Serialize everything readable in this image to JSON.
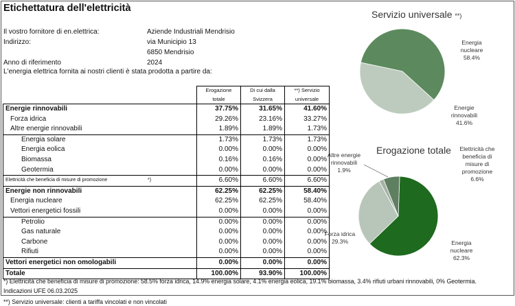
{
  "title": "Etichettatura dell'elettricità",
  "info": {
    "supplier_label": "Il vostro fornitore di en.elettrica:",
    "supplier_value": "Aziende Industriali Mendrisio",
    "address_label": "Indirizzo:",
    "address_line1": "via Municipio 13",
    "address_line2": "6850 Mendrisio",
    "year_label": "Anno di riferimento",
    "year_value": "2024",
    "intro": "L'energia elettrica fornita ai nostri clienti è stata prodotta a partire da:"
  },
  "table": {
    "headers": [
      [
        "Erogazione",
        "totale"
      ],
      [
        "Di cui dalla",
        "Svizzera"
      ],
      [
        "**) Servizio",
        "universale"
      ]
    ],
    "rows": [
      {
        "label": "Energie rinnovabili",
        "v": [
          "37.75%",
          "31.65%",
          "41.60%"
        ]
      },
      {
        "label": "Forza idrica",
        "v": [
          "29.26%",
          "23.16%",
          "33.27%"
        ]
      },
      {
        "label": "Altre energie rinnovabili",
        "v": [
          "1.89%",
          "1.89%",
          "1.73%"
        ]
      },
      {
        "label": "Energia solare",
        "v": [
          "1.73%",
          "1.73%",
          "1.73%"
        ]
      },
      {
        "label": "Energia eolica",
        "v": [
          "0.00%",
          "0.00%",
          "0.00%"
        ]
      },
      {
        "label": "Biomassa",
        "v": [
          "0.16%",
          "0.16%",
          "0.00%"
        ]
      },
      {
        "label": "Geotermia",
        "v": [
          "0.00%",
          "0.00%",
          "0.00%"
        ]
      },
      {
        "label": "Elettricità che beneficia di misure di promozione",
        "note": "*)",
        "v": [
          "6.60%",
          "6.60%",
          "6.60%"
        ]
      },
      {
        "label": "Energie non rinnovabili",
        "v": [
          "62.25%",
          "62.25%",
          "58.40%"
        ]
      },
      {
        "label": "Energia nucleare",
        "v": [
          "62.25%",
          "62.25%",
          "58.40%"
        ]
      },
      {
        "label": "Vettori energetici fossili",
        "v": [
          "0.00%",
          "0.00%",
          "0.00%"
        ]
      },
      {
        "label": "Petrolio",
        "v": [
          "0.00%",
          "0.00%",
          "0.00%"
        ]
      },
      {
        "label": "Gas naturale",
        "v": [
          "0.00%",
          "0.00%",
          "0.00%"
        ]
      },
      {
        "label": "Carbone",
        "v": [
          "0.00%",
          "0.00%",
          "0.00%"
        ]
      },
      {
        "label": "Rifiuti",
        "v": [
          "0.00%",
          "0.00%",
          "0.00%"
        ]
      },
      {
        "label": "Vettori energetici non omologabili",
        "v": [
          "0.00%",
          "0.00%",
          "0.00%"
        ]
      },
      {
        "label": "Totale",
        "v": [
          "100.00%",
          "93.90%",
          "100.00%"
        ]
      }
    ]
  },
  "footnotes": {
    "promo": "*) Elettricità che beneficia di misure di promozione: 58.5% forza idrica, 14.9% energia solare,  4.1% energia eolica, 19.1% biomassa, 3.4% rifiuti urbani rinnovabili, 0% Geotermia.",
    "date": "Indicazioni UFE 06.03.2025",
    "service": "**) Servizio universale: clienti a tariffa vincolati e non vincolati"
  },
  "charts": {
    "universal": {
      "title": "Servizio universale",
      "title_note": "**)",
      "labels": [
        {
          "name": "Energia nucleare",
          "value": "58.4%"
        },
        {
          "name": "Energie rinnovabili",
          "value": "41.6%"
        }
      ]
    },
    "total": {
      "title": "Erogazione totale",
      "labels": [
        {
          "name": "Altre energie rinnovabili",
          "value": "1.9%"
        },
        {
          "name": "Elettricità che beneficia di misure di promozione",
          "value": "6.6%"
        },
        {
          "name": "Forza idrica",
          "value": "29.3%"
        },
        {
          "name": "Energia nucleare",
          "value": "62.3%"
        }
      ]
    }
  },
  "chart_data": [
    {
      "type": "pie",
      "title": "Servizio universale",
      "categories": [
        "Energia nucleare",
        "Energie rinnovabili"
      ],
      "values": [
        58.4,
        41.6
      ],
      "colors": [
        "#5c8a5e",
        "#bccbbd"
      ]
    },
    {
      "type": "pie",
      "title": "Erogazione totale",
      "categories": [
        "Energia nucleare",
        "Forza idrica",
        "Altre energie rinnovabili",
        "Elettricità che beneficia di misure di promozione"
      ],
      "values": [
        62.3,
        29.3,
        1.9,
        6.6
      ],
      "colors": [
        "#1e6a1e",
        "#b8c6b9",
        "#a5b2a6",
        "#5e7f60"
      ]
    }
  ]
}
